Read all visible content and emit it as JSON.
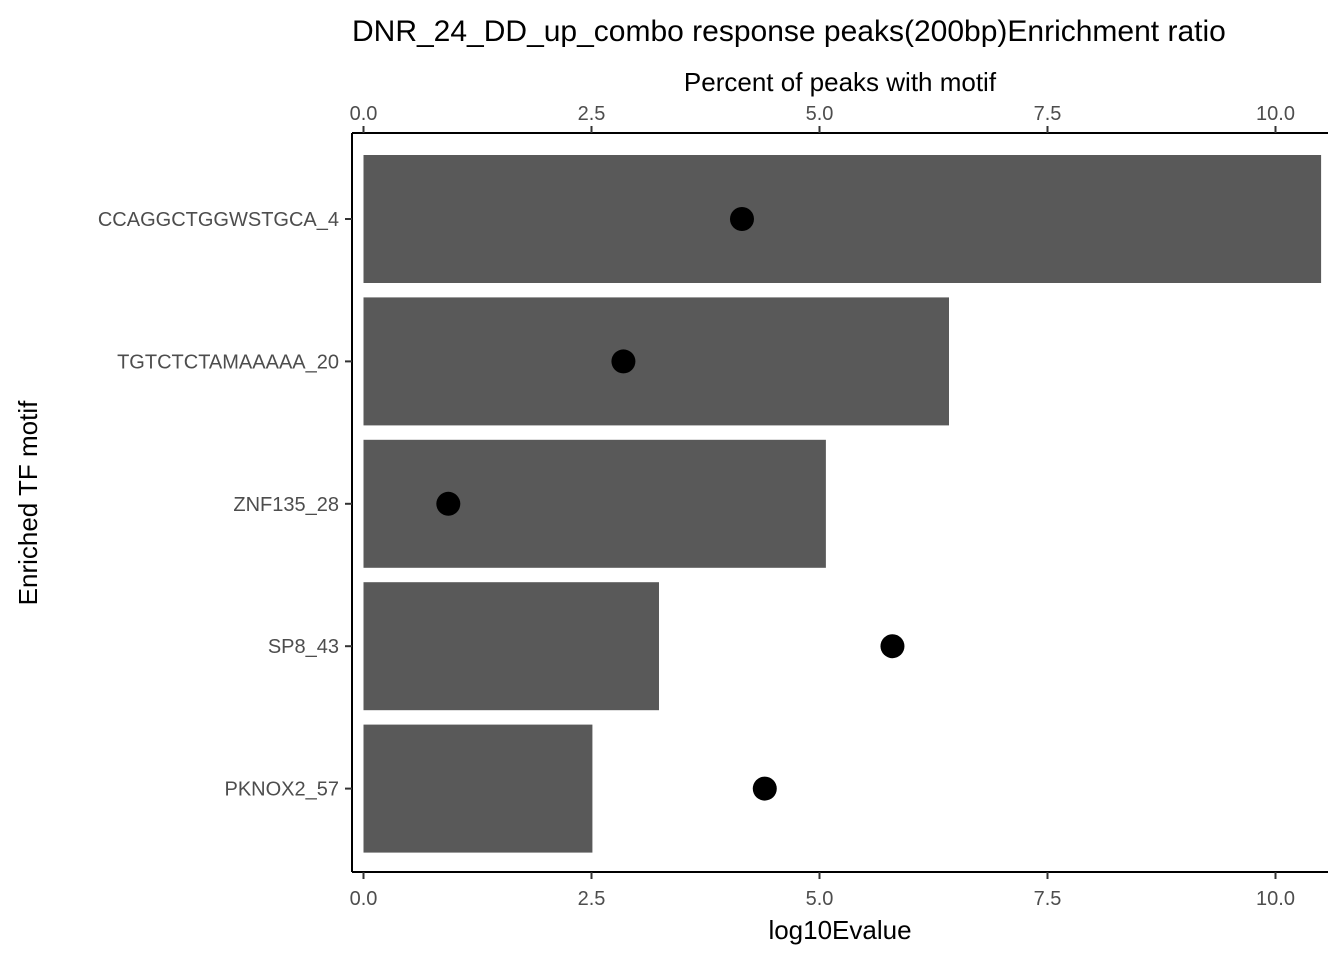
{
  "chart_data": {
    "type": "bar",
    "title": "DNR_24_DD_up_combo response peaks(200bp)Enrichment ratio",
    "xlabel": "log10Evalue",
    "x2label": "Percent of peaks with motif",
    "ylabel": "Enriched TF motif",
    "xlim": [
      0,
      10.5
    ],
    "x_ticks": [
      "0.0",
      "2.5",
      "5.0",
      "7.5",
      "10.0"
    ],
    "x2_ticks": [
      "0.0",
      "2.5",
      "5.0",
      "7.5",
      "10.0"
    ],
    "categories": [
      "CCAGGCTGGWSTGCA_4",
      "TGTCTCTAMAAAAA_20",
      "ZNF135_28",
      "SP8_43",
      "PKNOX2_57"
    ],
    "series": [
      {
        "name": "log10Evalue",
        "kind": "bar",
        "values": [
          10.5,
          6.42,
          5.07,
          3.24,
          2.51
        ]
      },
      {
        "name": "Percent of peaks with motif",
        "kind": "point",
        "values": [
          4.15,
          2.85,
          0.93,
          5.8,
          4.4
        ]
      }
    ],
    "grid": false,
    "colors": {
      "bar": "#595959",
      "point": "#000000",
      "axis": "#000000",
      "tick_text": "#4d4d4d"
    }
  }
}
